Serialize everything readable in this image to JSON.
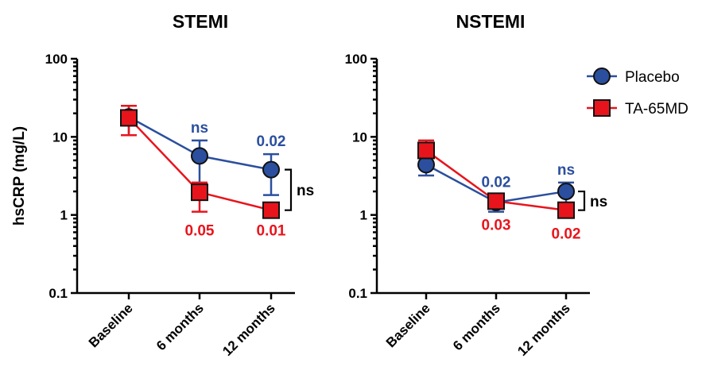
{
  "chart_data": [
    {
      "type": "line",
      "title": "STEMI",
      "xlabel": "",
      "ylabel": "hsCRP (mg/L)",
      "yscale": "log",
      "ylim": [
        0.1,
        100
      ],
      "yticks": [
        "0.1",
        "1",
        "10",
        "100"
      ],
      "categories": [
        "Baseline",
        "6 months",
        "12 months"
      ],
      "series": [
        {
          "name": "Placebo",
          "color": "#2b4f9e",
          "marker": "circle",
          "values": [
            18,
            5.7,
            3.8
          ],
          "err_low": [
            10.5,
            2.5,
            1.8
          ],
          "err_high": [
            25,
            9,
            6
          ]
        },
        {
          "name": "TA-65MD",
          "color": "#e8141c",
          "marker": "square",
          "values": [
            17.5,
            1.95,
            1.15
          ],
          "err_low": [
            10.5,
            1.1,
            1.1
          ],
          "err_high": [
            25,
            2.6,
            1.2
          ]
        }
      ],
      "annotations": {
        "placebo": [
          "",
          "ns",
          "0.02"
        ],
        "ta65": [
          "",
          "0.05",
          "0.01"
        ],
        "bracket": "ns"
      }
    },
    {
      "type": "line",
      "title": "NSTEMI",
      "xlabel": "",
      "ylabel": "",
      "yscale": "log",
      "ylim": [
        0.1,
        100
      ],
      "yticks": [
        "0.1",
        "1",
        "10",
        "100"
      ],
      "categories": [
        "Baseline",
        "6 months",
        "12 months"
      ],
      "series": [
        {
          "name": "Placebo",
          "color": "#2b4f9e",
          "marker": "circle",
          "values": [
            4.4,
            1.45,
            2.0
          ],
          "err_low": [
            3.2,
            1.1,
            1.4
          ],
          "err_high": [
            5.8,
            1.8,
            2.6
          ]
        },
        {
          "name": "TA-65MD",
          "color": "#e8141c",
          "marker": "square",
          "values": [
            6.7,
            1.5,
            1.15
          ],
          "err_low": [
            4.8,
            1.3,
            1.0
          ],
          "err_high": [
            9.0,
            1.7,
            1.3
          ]
        }
      ],
      "annotations": {
        "placebo": [
          "",
          "0.02",
          "ns"
        ],
        "ta65": [
          "",
          "0.03",
          "0.02"
        ],
        "bracket": "ns"
      }
    }
  ],
  "legend": {
    "position": "top-right",
    "items": [
      {
        "name": "Placebo",
        "color": "#2b4f9e",
        "marker": "circle"
      },
      {
        "name": "TA-65MD",
        "color": "#e8141c",
        "marker": "square"
      }
    ]
  }
}
